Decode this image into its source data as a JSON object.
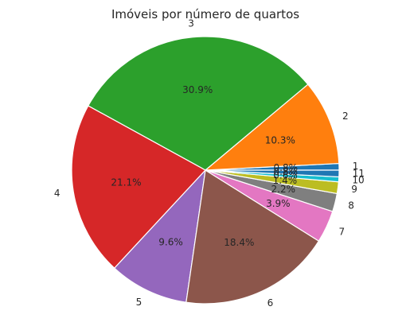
{
  "chart_data": {
    "type": "pie",
    "title": "Imóveis por número de quartos",
    "slices": [
      {
        "label": "1",
        "value": 0.8,
        "pct_label": "0.8%",
        "color": "#1f77b4"
      },
      {
        "label": "2",
        "value": 10.3,
        "pct_label": "10.3%",
        "color": "#ff7f0e"
      },
      {
        "label": "3",
        "value": 30.9,
        "pct_label": "30.9%",
        "color": "#2ca02c"
      },
      {
        "label": "4",
        "value": 21.1,
        "pct_label": "21.1%",
        "color": "#d62728"
      },
      {
        "label": "5",
        "value": 9.6,
        "pct_label": "9.6%",
        "color": "#9467bd"
      },
      {
        "label": "6",
        "value": 18.4,
        "pct_label": "18.4%",
        "color": "#8c564b"
      },
      {
        "label": "7",
        "value": 3.9,
        "pct_label": "3.9%",
        "color": "#e377c2"
      },
      {
        "label": "8",
        "value": 2.2,
        "pct_label": "2.2%",
        "color": "#7f7f7f"
      },
      {
        "label": "9",
        "value": 1.4,
        "pct_label": "1.4%",
        "color": "#bcbd22"
      },
      {
        "label": "10",
        "value": 0.6,
        "pct_label": "0.6%",
        "color": "#17becf"
      },
      {
        "label": "11",
        "value": 0.8,
        "pct_label": "0.8%",
        "color": "#1f77b4"
      }
    ],
    "start_angle_deg": 0,
    "direction": "counterclockwise",
    "legend": "none"
  }
}
